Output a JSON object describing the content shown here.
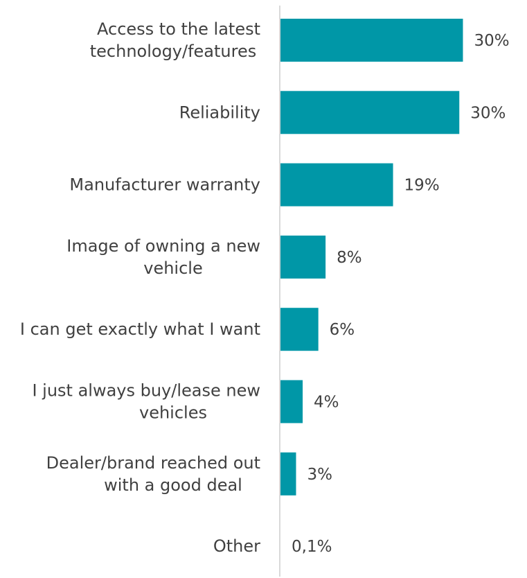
{
  "chart_data": {
    "type": "bar",
    "orientation": "horizontal",
    "categories": [
      [
        "Access to the latest",
        "technology/features"
      ],
      [
        "Reliability"
      ],
      [
        "Manufacturer warranty"
      ],
      [
        "Image of owning a new",
        "vehicle"
      ],
      [
        "I can get exactly what I want"
      ],
      [
        "I just always buy/lease new",
        "vehicles"
      ],
      [
        "Dealer/brand reached out",
        "with a good deal"
      ],
      [
        "Other"
      ]
    ],
    "values": [
      30.4,
      29.8,
      18.8,
      7.6,
      6.4,
      3.8,
      2.7,
      0.1
    ],
    "value_labels": [
      "30%",
      "30%",
      "19%",
      "8%",
      "6%",
      "4%",
      "3%",
      "0,1%"
    ],
    "bar_color": "#0097A7",
    "axis_color": "#D9D9D9",
    "grid": false,
    "legend": "none"
  }
}
